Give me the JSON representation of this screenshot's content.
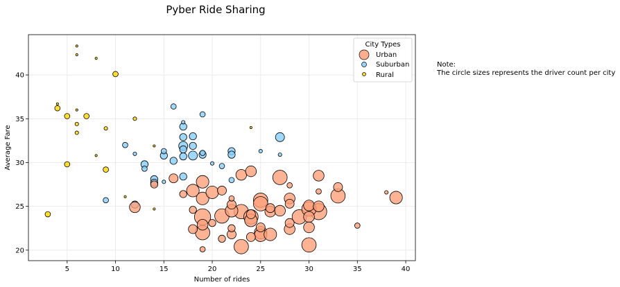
{
  "chart_data": {
    "type": "scatter",
    "title": "Pyber Ride Sharing",
    "xlabel": "Number of rides",
    "ylabel": "Average Fare",
    "xlim": [
      1,
      41
    ],
    "ylim": [
      18.8,
      44.6
    ],
    "xticks": [
      "5",
      "10",
      "15",
      "20",
      "25",
      "30",
      "35",
      "40"
    ],
    "yticks": [
      "20",
      "25",
      "30",
      "35",
      "40"
    ],
    "grid": true,
    "legend": {
      "title": "City Types",
      "placement": "top-right",
      "entries": [
        "Urban",
        "Suburban",
        "Rural"
      ]
    },
    "note": {
      "heading": "Note:",
      "text": "The circle sizes represents the driver count per city"
    },
    "series": [
      {
        "name": "Urban",
        "color": "#FFA07A",
        "points": [
          {
            "x": 12,
            "y": 24.9,
            "r": 6
          },
          {
            "x": 14,
            "y": 27.5,
            "r": 4
          },
          {
            "x": 16,
            "y": 28.2,
            "r": 5
          },
          {
            "x": 17,
            "y": 26.4,
            "r": 4
          },
          {
            "x": 18,
            "y": 26.8,
            "r": 7
          },
          {
            "x": 18,
            "y": 24.6,
            "r": 4
          },
          {
            "x": 18,
            "y": 22.4,
            "r": 5
          },
          {
            "x": 19,
            "y": 27.8,
            "r": 7
          },
          {
            "x": 19,
            "y": 25.9,
            "r": 7
          },
          {
            "x": 19,
            "y": 23.8,
            "r": 9
          },
          {
            "x": 19,
            "y": 22.9,
            "r": 6
          },
          {
            "x": 19,
            "y": 22.0,
            "r": 8
          },
          {
            "x": 19,
            "y": 20.1,
            "r": 3
          },
          {
            "x": 20,
            "y": 26.6,
            "r": 7
          },
          {
            "x": 20,
            "y": 23.1,
            "r": 4
          },
          {
            "x": 21,
            "y": 26.8,
            "r": 5
          },
          {
            "x": 21,
            "y": 23.9,
            "r": 8
          },
          {
            "x": 21,
            "y": 21.3,
            "r": 4
          },
          {
            "x": 22,
            "y": 25.9,
            "r": 3
          },
          {
            "x": 22,
            "y": 25.2,
            "r": 5
          },
          {
            "x": 22,
            "y": 24.5,
            "r": 7
          },
          {
            "x": 22,
            "y": 22.5,
            "r": 4
          },
          {
            "x": 22,
            "y": 21.8,
            "r": 5
          },
          {
            "x": 23,
            "y": 28.6,
            "r": 6
          },
          {
            "x": 23,
            "y": 24.4,
            "r": 8
          },
          {
            "x": 23,
            "y": 20.4,
            "r": 8
          },
          {
            "x": 24,
            "y": 29.0,
            "r": 6
          },
          {
            "x": 24,
            "y": 24.1,
            "r": 5
          },
          {
            "x": 24,
            "y": 23.8,
            "r": 8
          },
          {
            "x": 24,
            "y": 23.4,
            "r": 7
          },
          {
            "x": 24,
            "y": 21.5,
            "r": 5
          },
          {
            "x": 25,
            "y": 25.7,
            "r": 8
          },
          {
            "x": 25,
            "y": 25.3,
            "r": 8
          },
          {
            "x": 25,
            "y": 22.6,
            "r": 5
          },
          {
            "x": 25,
            "y": 22.0,
            "r": 7
          },
          {
            "x": 25,
            "y": 21.7,
            "r": 7
          },
          {
            "x": 26,
            "y": 24.8,
            "r": 5
          },
          {
            "x": 26,
            "y": 24.4,
            "r": 6
          },
          {
            "x": 26,
            "y": 21.8,
            "r": 7
          },
          {
            "x": 27,
            "y": 28.3,
            "r": 8
          },
          {
            "x": 27,
            "y": 24.5,
            "r": 6
          },
          {
            "x": 28,
            "y": 27.4,
            "r": 3
          },
          {
            "x": 28,
            "y": 25.9,
            "r": 6
          },
          {
            "x": 28,
            "y": 25.3,
            "r": 5
          },
          {
            "x": 28,
            "y": 23.1,
            "r": 5
          },
          {
            "x": 28,
            "y": 22.4,
            "r": 6
          },
          {
            "x": 29,
            "y": 23.8,
            "r": 8
          },
          {
            "x": 30,
            "y": 25.1,
            "r": 6
          },
          {
            "x": 30,
            "y": 24.7,
            "r": 8
          },
          {
            "x": 30,
            "y": 23.8,
            "r": 6
          },
          {
            "x": 30,
            "y": 22.6,
            "r": 6
          },
          {
            "x": 30,
            "y": 20.6,
            "r": 8
          },
          {
            "x": 31,
            "y": 28.5,
            "r": 6
          },
          {
            "x": 31,
            "y": 26.7,
            "r": 3
          },
          {
            "x": 31,
            "y": 25.0,
            "r": 6
          },
          {
            "x": 31,
            "y": 24.4,
            "r": 9
          },
          {
            "x": 33,
            "y": 27.2,
            "r": 5
          },
          {
            "x": 33,
            "y": 26.2,
            "r": 8
          },
          {
            "x": 35,
            "y": 22.8,
            "r": 3
          },
          {
            "x": 38,
            "y": 26.6,
            "r": 2
          },
          {
            "x": 39,
            "y": 26.0,
            "r": 7
          }
        ]
      },
      {
        "name": "Suburban",
        "color": "#87CEFA",
        "points": [
          {
            "x": 9,
            "y": 25.7,
            "r": 3
          },
          {
            "x": 11,
            "y": 32.0,
            "r": 3
          },
          {
            "x": 12,
            "y": 31.0,
            "r": 2
          },
          {
            "x": 12,
            "y": 25.2,
            "r": 4
          },
          {
            "x": 13,
            "y": 29.8,
            "r": 4
          },
          {
            "x": 13,
            "y": 29.3,
            "r": 3
          },
          {
            "x": 14,
            "y": 28.1,
            "r": 4
          },
          {
            "x": 14,
            "y": 27.7,
            "r": 4
          },
          {
            "x": 15,
            "y": 31.3,
            "r": 3
          },
          {
            "x": 15,
            "y": 30.8,
            "r": 4
          },
          {
            "x": 15,
            "y": 27.8,
            "r": 2
          },
          {
            "x": 16,
            "y": 36.4,
            "r": 3
          },
          {
            "x": 16,
            "y": 30.2,
            "r": 4
          },
          {
            "x": 17,
            "y": 34.6,
            "r": 2
          },
          {
            "x": 17,
            "y": 34.1,
            "r": 4
          },
          {
            "x": 17,
            "y": 32.9,
            "r": 4
          },
          {
            "x": 17,
            "y": 31.9,
            "r": 5
          },
          {
            "x": 17,
            "y": 31.5,
            "r": 4
          },
          {
            "x": 17,
            "y": 30.7,
            "r": 4
          },
          {
            "x": 17,
            "y": 28.4,
            "r": 4
          },
          {
            "x": 18,
            "y": 33.0,
            "r": 4
          },
          {
            "x": 18,
            "y": 31.9,
            "r": 4
          },
          {
            "x": 18,
            "y": 30.8,
            "r": 5
          },
          {
            "x": 19,
            "y": 35.5,
            "r": 3
          },
          {
            "x": 19,
            "y": 31.1,
            "r": 3
          },
          {
            "x": 19,
            "y": 30.9,
            "r": 4
          },
          {
            "x": 20,
            "y": 29.9,
            "r": 2
          },
          {
            "x": 21,
            "y": 29.6,
            "r": 3
          },
          {
            "x": 22,
            "y": 31.3,
            "r": 4
          },
          {
            "x": 22,
            "y": 30.9,
            "r": 4
          },
          {
            "x": 22,
            "y": 28.0,
            "r": 3
          },
          {
            "x": 25,
            "y": 31.3,
            "r": 2
          },
          {
            "x": 27,
            "y": 32.9,
            "r": 5
          },
          {
            "x": 27,
            "y": 30.9,
            "r": 2
          }
        ]
      },
      {
        "name": "Rural",
        "color": "#FFD700",
        "points": [
          {
            "x": 3,
            "y": 24.1,
            "r": 3
          },
          {
            "x": 4,
            "y": 36.7,
            "r": 1
          },
          {
            "x": 4,
            "y": 36.2,
            "r": 3
          },
          {
            "x": 5,
            "y": 35.3,
            "r": 3
          },
          {
            "x": 5,
            "y": 29.8,
            "r": 3
          },
          {
            "x": 6,
            "y": 43.3,
            "r": 1
          },
          {
            "x": 6,
            "y": 42.3,
            "r": 1
          },
          {
            "x": 6,
            "y": 36.0,
            "r": 1
          },
          {
            "x": 6,
            "y": 34.4,
            "r": 2
          },
          {
            "x": 6,
            "y": 33.4,
            "r": 2
          },
          {
            "x": 7,
            "y": 35.3,
            "r": 3
          },
          {
            "x": 8,
            "y": 41.9,
            "r": 1
          },
          {
            "x": 8,
            "y": 30.8,
            "r": 1
          },
          {
            "x": 9,
            "y": 33.9,
            "r": 2
          },
          {
            "x": 9,
            "y": 29.2,
            "r": 3
          },
          {
            "x": 10,
            "y": 40.1,
            "r": 3
          },
          {
            "x": 11,
            "y": 26.1,
            "r": 1
          },
          {
            "x": 12,
            "y": 35.0,
            "r": 2
          },
          {
            "x": 14,
            "y": 31.9,
            "r": 1
          },
          {
            "x": 14,
            "y": 24.7,
            "r": 1
          },
          {
            "x": 24,
            "y": 34.0,
            "r": 1
          }
        ]
      }
    ]
  }
}
